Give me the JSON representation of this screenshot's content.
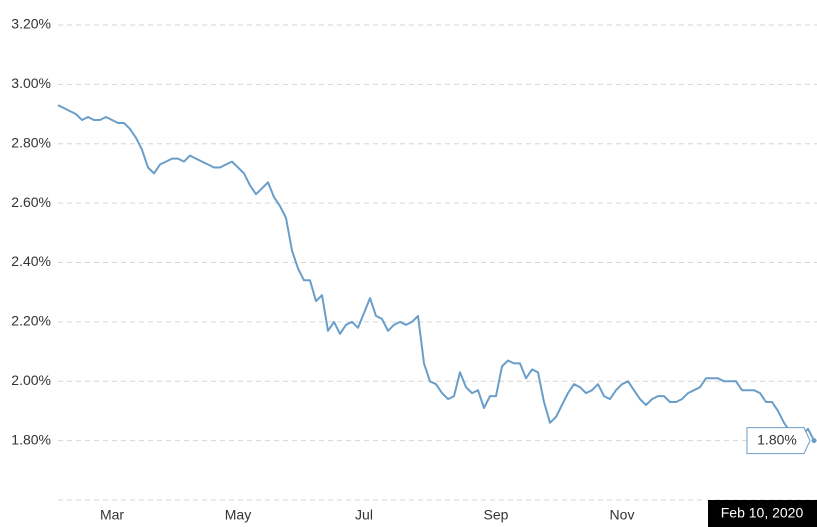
{
  "chart_data": {
    "type": "line",
    "categories": [
      null,
      null,
      null,
      null,
      null,
      null,
      null,
      null,
      null,
      "Mar",
      null,
      null,
      null,
      null,
      null,
      null,
      null,
      null,
      null,
      null,
      null,
      null,
      null,
      null,
      null,
      null,
      null,
      null,
      null,
      null,
      "May",
      null,
      null,
      null,
      null,
      null,
      null,
      null,
      null,
      null,
      null,
      null,
      null,
      null,
      null,
      null,
      null,
      null,
      null,
      null,
      null,
      "Jul",
      null,
      null,
      null,
      null,
      null,
      null,
      null,
      null,
      null,
      null,
      null,
      null,
      null,
      null,
      null,
      null,
      null,
      null,
      null,
      null,
      null,
      "Sep",
      null,
      null,
      null,
      null,
      null,
      null,
      null,
      null,
      null,
      null,
      null,
      null,
      null,
      null,
      null,
      null,
      null,
      null,
      null,
      null,
      "Nov",
      null,
      null,
      null,
      null,
      null,
      null,
      null,
      null,
      null,
      null,
      null,
      null,
      null,
      null,
      null,
      null,
      null,
      null,
      null,
      null,
      null,
      null,
      null,
      null,
      null,
      null,
      null,
      null,
      null,
      null,
      null,
      "Feb 10, 2020"
    ],
    "values": [
      2.93,
      2.92,
      2.91,
      2.9,
      2.88,
      2.89,
      2.88,
      2.88,
      2.89,
      2.88,
      2.87,
      2.87,
      2.85,
      2.82,
      2.78,
      2.72,
      2.7,
      2.73,
      2.74,
      2.75,
      2.75,
      2.74,
      2.76,
      2.75,
      2.74,
      2.73,
      2.72,
      2.72,
      2.73,
      2.74,
      2.72,
      2.7,
      2.66,
      2.63,
      2.65,
      2.67,
      2.62,
      2.59,
      2.55,
      2.44,
      2.38,
      2.34,
      2.34,
      2.27,
      2.29,
      2.17,
      2.2,
      2.16,
      2.19,
      2.2,
      2.18,
      2.23,
      2.28,
      2.22,
      2.21,
      2.17,
      2.19,
      2.2,
      2.19,
      2.2,
      2.22,
      2.06,
      2.0,
      1.99,
      1.96,
      1.94,
      1.95,
      2.03,
      1.98,
      1.96,
      1.97,
      1.91,
      1.95,
      1.95,
      2.05,
      2.07,
      2.06,
      2.06,
      2.01,
      2.04,
      2.03,
      1.93,
      1.86,
      1.88,
      1.92,
      1.96,
      1.99,
      1.98,
      1.96,
      1.97,
      1.99,
      1.95,
      1.94,
      1.97,
      1.99,
      2.0,
      1.97,
      1.94,
      1.92,
      1.94,
      1.95,
      1.95,
      1.93,
      1.93,
      1.94,
      1.96,
      1.97,
      1.98,
      2.01,
      2.01,
      2.01,
      2.0,
      2.0,
      2.0,
      1.97,
      1.97,
      1.97,
      1.96,
      1.93,
      1.93,
      1.9,
      1.86,
      1.83,
      1.82,
      1.82,
      1.84,
      1.8
    ],
    "value_labels": [
      null,
      null,
      null,
      null,
      null,
      null,
      null,
      null,
      null,
      null,
      null,
      null,
      null,
      null,
      null,
      null,
      null,
      null,
      null,
      null,
      null,
      null,
      null,
      null,
      null,
      null,
      null,
      null,
      null,
      null,
      null,
      null,
      null,
      null,
      null,
      null,
      null,
      null,
      null,
      null,
      null,
      null,
      null,
      null,
      null,
      null,
      null,
      null,
      null,
      null,
      null,
      null,
      null,
      null,
      null,
      null,
      null,
      null,
      null,
      null,
      null,
      null,
      null,
      null,
      null,
      null,
      null,
      null,
      null,
      null,
      null,
      null,
      null,
      null,
      null,
      null,
      null,
      null,
      null,
      null,
      null,
      null,
      null,
      null,
      null,
      null,
      null,
      null,
      null,
      null,
      null,
      null,
      null,
      null,
      null,
      null,
      null,
      null,
      null,
      null,
      null,
      null,
      null,
      null,
      null,
      null,
      null,
      null,
      null,
      null,
      null,
      null,
      null,
      null,
      null,
      null,
      null,
      null,
      null,
      null,
      null,
      null,
      null,
      null,
      null,
      null,
      "1.80%"
    ],
    "color": "#6a9ec9",
    "ylim": [
      1.6,
      3.2
    ],
    "yticks": [
      {
        "value": 1.8,
        "label": "1.80%"
      },
      {
        "value": 2.0,
        "label": "2.00%"
      },
      {
        "value": 2.2,
        "label": "2.20%"
      },
      {
        "value": 2.4,
        "label": "2.40%"
      },
      {
        "value": 2.6,
        "label": "2.60%"
      },
      {
        "value": 2.8,
        "label": "2.80%"
      },
      {
        "value": 3.0,
        "label": "3.00%"
      },
      {
        "value": 3.2,
        "label": "3.20%"
      }
    ],
    "grid": true
  }
}
